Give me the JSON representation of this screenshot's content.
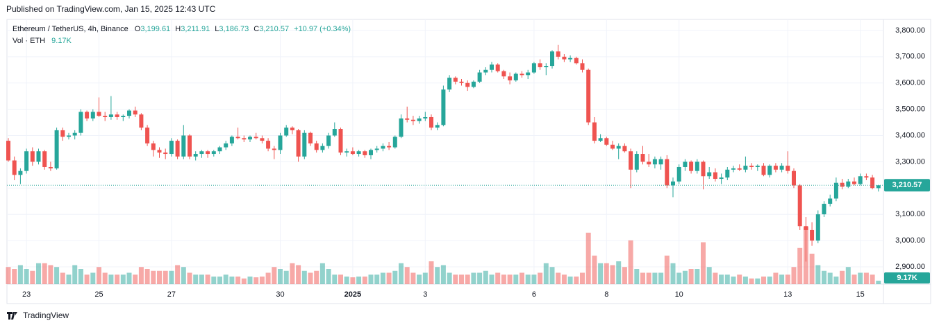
{
  "chart_data": {
    "type": "candlestick",
    "publish_note": "Published on TradingView.com, Jan 15, 2025 12:43 UTC",
    "title": "Ethereum / TetherUS, 4h, Binance",
    "legend": {
      "open_prefix": "O",
      "open": "3,199.61",
      "high_prefix": "H",
      "high": "3,211.91",
      "low_prefix": "L",
      "low": "3,186.73",
      "close_prefix": "C",
      "close": "3,210.57",
      "change": "+10.97 (+0.34%)"
    },
    "volume_title": "Vol · ETH",
    "volume_last": "9.17K",
    "last_price_label": "3,210.57",
    "brand": "TradingView",
    "up_color": "#26a69a",
    "down_color": "#ef5350",
    "grid": true,
    "ylim": [
      2834,
      3842
    ],
    "yticks": [
      {
        "value": 2900,
        "label": "2,900.00"
      },
      {
        "value": 3000,
        "label": "3,000.00"
      },
      {
        "value": 3100,
        "label": "3,100.00"
      },
      {
        "value": 3200,
        "label": "3,200.00"
      },
      {
        "value": 3300,
        "label": "3,300.00"
      },
      {
        "value": 3400,
        "label": "3,400.00"
      },
      {
        "value": 3500,
        "label": "3,500.00"
      },
      {
        "value": 3600,
        "label": "3,600.00"
      },
      {
        "value": 3700,
        "label": "3,700.00"
      },
      {
        "value": 3800,
        "label": "3,800.00"
      }
    ],
    "categories": [
      null,
      null,
      null,
      "23",
      null,
      null,
      null,
      null,
      null,
      null,
      null,
      null,
      null,
      null,
      null,
      "25",
      null,
      null,
      null,
      null,
      null,
      null,
      null,
      null,
      null,
      null,
      null,
      "27",
      null,
      null,
      null,
      null,
      null,
      null,
      null,
      null,
      null,
      null,
      null,
      null,
      null,
      null,
      null,
      null,
      null,
      "30",
      null,
      null,
      null,
      null,
      null,
      null,
      null,
      null,
      null,
      null,
      null,
      "2025",
      null,
      null,
      null,
      null,
      null,
      null,
      null,
      null,
      null,
      null,
      null,
      "3",
      null,
      null,
      null,
      null,
      null,
      null,
      null,
      null,
      null,
      null,
      null,
      null,
      null,
      null,
      null,
      null,
      null,
      "6",
      null,
      null,
      null,
      null,
      null,
      null,
      null,
      null,
      null,
      null,
      null,
      "8",
      null,
      null,
      null,
      null,
      null,
      null,
      null,
      null,
      null,
      null,
      null,
      "10",
      null,
      null,
      null,
      null,
      null,
      null,
      null,
      null,
      null,
      null,
      null,
      null,
      null,
      null,
      null,
      null,
      null,
      "13",
      null,
      null,
      null,
      null,
      null,
      null,
      null,
      null,
      null,
      null,
      null,
      "15",
      null,
      null,
      null
    ],
    "candles": [
      [
        3380,
        3390,
        3300,
        3305
      ],
      [
        3305,
        3320,
        3230,
        3250
      ],
      [
        3250,
        3275,
        3215,
        3265
      ],
      [
        3265,
        3350,
        3255,
        3340
      ],
      [
        3340,
        3355,
        3285,
        3300
      ],
      [
        3300,
        3350,
        3290,
        3340
      ],
      [
        3340,
        3345,
        3270,
        3280
      ],
      [
        3280,
        3300,
        3265,
        3275
      ],
      [
        3275,
        3430,
        3270,
        3420
      ],
      [
        3420,
        3430,
        3380,
        3395
      ],
      [
        3395,
        3410,
        3385,
        3400
      ],
      [
        3400,
        3420,
        3385,
        3410
      ],
      [
        3410,
        3500,
        3400,
        3490
      ],
      [
        3490,
        3495,
        3455,
        3465
      ],
      [
        3465,
        3500,
        3455,
        3490
      ],
      [
        3490,
        3545,
        3470,
        3475
      ],
      [
        3475,
        3490,
        3455,
        3470
      ],
      [
        3470,
        3550,
        3460,
        3480
      ],
      [
        3480,
        3490,
        3460,
        3470
      ],
      [
        3470,
        3480,
        3455,
        3475
      ],
      [
        3475,
        3500,
        3465,
        3495
      ],
      [
        3495,
        3510,
        3470,
        3480
      ],
      [
        3480,
        3485,
        3420,
        3430
      ],
      [
        3430,
        3440,
        3360,
        3370
      ],
      [
        3370,
        3380,
        3320,
        3345
      ],
      [
        3345,
        3355,
        3315,
        3335
      ],
      [
        3335,
        3350,
        3310,
        3330
      ],
      [
        3330,
        3390,
        3320,
        3380
      ],
      [
        3380,
        3385,
        3310,
        3320
      ],
      [
        3320,
        3440,
        3310,
        3400
      ],
      [
        3400,
        3405,
        3310,
        3320
      ],
      [
        3320,
        3340,
        3305,
        3330
      ],
      [
        3330,
        3345,
        3315,
        3340
      ],
      [
        3340,
        3345,
        3315,
        3330
      ],
      [
        3330,
        3345,
        3320,
        3340
      ],
      [
        3340,
        3360,
        3330,
        3355
      ],
      [
        3355,
        3380,
        3345,
        3370
      ],
      [
        3370,
        3400,
        3360,
        3395
      ],
      [
        3395,
        3430,
        3385,
        3390
      ],
      [
        3390,
        3400,
        3375,
        3385
      ],
      [
        3385,
        3400,
        3375,
        3395
      ],
      [
        3395,
        3410,
        3385,
        3390
      ],
      [
        3390,
        3400,
        3370,
        3380
      ],
      [
        3380,
        3390,
        3340,
        3350
      ],
      [
        3350,
        3360,
        3310,
        3345
      ],
      [
        3345,
        3410,
        3330,
        3400
      ],
      [
        3400,
        3440,
        3395,
        3430
      ],
      [
        3430,
        3435,
        3405,
        3420
      ],
      [
        3420,
        3425,
        3300,
        3320
      ],
      [
        3320,
        3420,
        3310,
        3410
      ],
      [
        3410,
        3415,
        3360,
        3370
      ],
      [
        3370,
        3380,
        3335,
        3345
      ],
      [
        3345,
        3370,
        3335,
        3360
      ],
      [
        3360,
        3410,
        3350,
        3400
      ],
      [
        3400,
        3450,
        3395,
        3425
      ],
      [
        3425,
        3430,
        3325,
        3335
      ],
      [
        3335,
        3350,
        3320,
        3340
      ],
      [
        3340,
        3355,
        3325,
        3330
      ],
      [
        3330,
        3345,
        3320,
        3340
      ],
      [
        3340,
        3345,
        3315,
        3325
      ],
      [
        3325,
        3350,
        3310,
        3345
      ],
      [
        3345,
        3360,
        3335,
        3350
      ],
      [
        3350,
        3370,
        3340,
        3360
      ],
      [
        3360,
        3375,
        3345,
        3355
      ],
      [
        3355,
        3400,
        3350,
        3395
      ],
      [
        3395,
        3480,
        3390,
        3465
      ],
      [
        3465,
        3510,
        3450,
        3460
      ],
      [
        3460,
        3475,
        3440,
        3455
      ],
      [
        3455,
        3475,
        3445,
        3465
      ],
      [
        3465,
        3490,
        3455,
        3470
      ],
      [
        3470,
        3480,
        3420,
        3430
      ],
      [
        3430,
        3450,
        3420,
        3440
      ],
      [
        3440,
        3590,
        3435,
        3575
      ],
      [
        3575,
        3630,
        3565,
        3620
      ],
      [
        3620,
        3625,
        3595,
        3605
      ],
      [
        3605,
        3615,
        3590,
        3600
      ],
      [
        3600,
        3610,
        3570,
        3585
      ],
      [
        3585,
        3610,
        3580,
        3605
      ],
      [
        3605,
        3650,
        3600,
        3640
      ],
      [
        3640,
        3660,
        3630,
        3650
      ],
      [
        3650,
        3680,
        3640,
        3670
      ],
      [
        3670,
        3675,
        3640,
        3645
      ],
      [
        3645,
        3650,
        3615,
        3625
      ],
      [
        3625,
        3640,
        3595,
        3610
      ],
      [
        3610,
        3640,
        3605,
        3635
      ],
      [
        3635,
        3645,
        3620,
        3630
      ],
      [
        3630,
        3650,
        3615,
        3640
      ],
      [
        3640,
        3680,
        3635,
        3675
      ],
      [
        3675,
        3690,
        3650,
        3660
      ],
      [
        3660,
        3675,
        3630,
        3665
      ],
      [
        3665,
        3725,
        3655,
        3720
      ],
      [
        3720,
        3745,
        3690,
        3700
      ],
      [
        3700,
        3710,
        3680,
        3690
      ],
      [
        3690,
        3705,
        3680,
        3695
      ],
      [
        3695,
        3700,
        3670,
        3675
      ],
      [
        3675,
        3690,
        3640,
        3650
      ],
      [
        3650,
        3655,
        3440,
        3450
      ],
      [
        3450,
        3470,
        3370,
        3380
      ],
      [
        3380,
        3405,
        3375,
        3390
      ],
      [
        3390,
        3395,
        3360,
        3365
      ],
      [
        3365,
        3380,
        3345,
        3350
      ],
      [
        3350,
        3370,
        3310,
        3360
      ],
      [
        3360,
        3370,
        3335,
        3340
      ],
      [
        3340,
        3350,
        3200,
        3270
      ],
      [
        3270,
        3340,
        3260,
        3330
      ],
      [
        3330,
        3360,
        3290,
        3300
      ],
      [
        3300,
        3330,
        3280,
        3290
      ],
      [
        3290,
        3320,
        3275,
        3310
      ],
      [
        3290,
        3320,
        3270,
        3310
      ],
      [
        3310,
        3325,
        3200,
        3210
      ],
      [
        3210,
        3240,
        3165,
        3225
      ],
      [
        3225,
        3290,
        3215,
        3280
      ],
      [
        3280,
        3310,
        3265,
        3300
      ],
      [
        3300,
        3305,
        3255,
        3265
      ],
      [
        3265,
        3310,
        3255,
        3300
      ],
      [
        3300,
        3305,
        3195,
        3245
      ],
      [
        3245,
        3280,
        3235,
        3260
      ],
      [
        3260,
        3275,
        3225,
        3235
      ],
      [
        3235,
        3255,
        3215,
        3240
      ],
      [
        3240,
        3280,
        3230,
        3270
      ],
      [
        3270,
        3285,
        3260,
        3275
      ],
      [
        3275,
        3290,
        3265,
        3270
      ],
      [
        3270,
        3320,
        3260,
        3285
      ],
      [
        3285,
        3295,
        3270,
        3280
      ],
      [
        3280,
        3290,
        3265,
        3285
      ],
      [
        3285,
        3295,
        3245,
        3250
      ],
      [
        3250,
        3290,
        3240,
        3285
      ],
      [
        3285,
        3295,
        3260,
        3270
      ],
      [
        3270,
        3295,
        3260,
        3285
      ],
      [
        3285,
        3340,
        3255,
        3265
      ],
      [
        3265,
        3275,
        3200,
        3210
      ],
      [
        3210,
        3215,
        3040,
        3055
      ],
      [
        3055,
        3090,
        2920,
        3040
      ],
      [
        3040,
        3070,
        2980,
        3000
      ],
      [
        3000,
        3115,
        2990,
        3100
      ],
      [
        3100,
        3150,
        3090,
        3140
      ],
      [
        3140,
        3175,
        3130,
        3160
      ],
      [
        3160,
        3240,
        3150,
        3220
      ],
      [
        3220,
        3235,
        3195,
        3205
      ],
      [
        3205,
        3235,
        3200,
        3225
      ],
      [
        3225,
        3240,
        3210,
        3215
      ],
      [
        3215,
        3255,
        3210,
        3245
      ],
      [
        3245,
        3255,
        3230,
        3240
      ],
      [
        3240,
        3250,
        3195,
        3200
      ],
      [
        3199.61,
        3211.91,
        3186.73,
        3210.57
      ]
    ],
    "volumes": [
      45,
      40,
      50,
      40,
      35,
      55,
      55,
      50,
      45,
      30,
      25,
      50,
      40,
      25,
      30,
      45,
      30,
      25,
      25,
      25,
      30,
      25,
      45,
      40,
      35,
      35,
      35,
      35,
      50,
      45,
      30,
      25,
      25,
      25,
      20,
      20,
      25,
      20,
      20,
      15,
      20,
      18,
      20,
      30,
      45,
      40,
      35,
      55,
      50,
      35,
      30,
      35,
      55,
      40,
      25,
      25,
      20,
      18,
      20,
      20,
      25,
      25,
      30,
      30,
      35,
      55,
      45,
      30,
      25,
      30,
      60,
      45,
      50,
      30,
      25,
      25,
      25,
      30,
      30,
      35,
      25,
      30,
      25,
      25,
      25,
      30,
      25,
      25,
      30,
      55,
      45,
      30,
      25,
      20,
      20,
      30,
      135,
      75,
      55,
      55,
      50,
      60,
      45,
      115,
      40,
      30,
      30,
      30,
      30,
      75,
      55,
      30,
      35,
      40,
      40,
      110,
      45,
      30,
      25,
      25,
      20,
      25,
      20,
      15,
      15,
      20,
      20,
      30,
      25,
      25,
      45,
      95,
      150,
      80,
      50,
      35,
      30,
      20,
      35,
      45,
      25,
      30,
      30,
      25,
      9.17
    ]
  }
}
